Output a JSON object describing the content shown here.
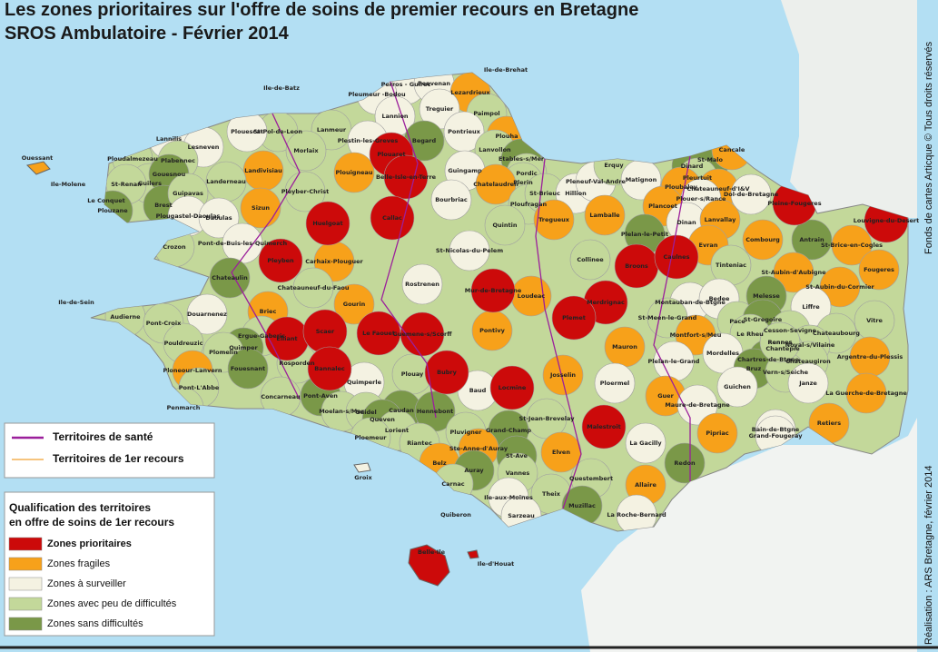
{
  "header": {
    "title": "Les zones prioritaires sur l'offre de soins de premier recours en Bretagne",
    "subtitle": "SROS Ambulatoire - Février 2014"
  },
  "legend": {
    "lines": [
      {
        "label": "Territoires de santé",
        "color": "#9b1f9b"
      },
      {
        "label": "Territoires de 1er recours",
        "color": "#f0a030"
      }
    ],
    "heading": [
      "Qualification des territoires",
      "en offre de soins de 1er recours"
    ],
    "zones": [
      {
        "label": "Zones prioritaires",
        "color": "#cc0a0a"
      },
      {
        "label": "Zones fragiles",
        "color": "#f7a11a"
      },
      {
        "label": "Zones à surveiller",
        "color": "#f4f2e2"
      },
      {
        "label": "Zones avec peu de difficultés",
        "color": "#c3d89a"
      },
      {
        "label": "Zones sans difficultés",
        "color": "#7a9848"
      }
    ]
  },
  "credits": [
    "Fonds de cartes Articque © Tous droits réservés",
    "Réalisation : ARS Bretagne, février 2014"
  ],
  "places": [
    "Ile-de-Brehat",
    "Ile-de-Batz",
    "Perros - Guirec",
    "Pleumeur -Bodou",
    "Penvenan",
    "Lezardrieux",
    "Treguier",
    "Paimpol",
    "Lannion",
    "St-Pol-de-Leon",
    "Plouescat",
    "Lanmeur",
    "Plestin-les-Greves",
    "Begard",
    "Pontrieux",
    "Plouha",
    "Lanvollon",
    "Etables-s/Mer",
    "Lannilis",
    "Lesneven",
    "Morlaix",
    "Plouaret",
    "Guingamp",
    "Ploudalmezeau",
    "Plabennec",
    "Ouessant",
    "Landivisiau",
    "Plouigneau",
    "Belle-Isle-en-Terre",
    "Pordic",
    "Plerin",
    "Ile-Molene",
    "Le Conquet",
    "Guilers",
    "Gouesnou",
    "St-Renan",
    "Landerneau",
    "Plouzane",
    "Brest",
    "Guipavas",
    "Sizun",
    "Pleyber-Christ",
    "Chatelaudren",
    "Bourbriac",
    "Ploufragan",
    "St-Brieuc",
    "Hillion",
    "Pleneuf-Val-Andre",
    "Erquy",
    "Matignon",
    "Dinard",
    "St-Malo",
    "Cancale",
    "Pleurtuit",
    "Chateauneuf-d'I&V",
    "Ploubalay",
    "Plouer-s/Rance",
    "Dol-de-Bretagne",
    "Pleine-Fougeres",
    "Plougastel-Daoulas",
    "Daoulas",
    "Huelgoat",
    "Callac",
    "Quintin",
    "Tregueux",
    "Lamballe",
    "Plancoet",
    "Dinan",
    "Lanvallay",
    "Louvigne-du-Desert",
    "Pont-de-Buis-les-Quimerch",
    "Crozon",
    "St-Nicolas-du-Pelem",
    "Plelan-le-Petit",
    "Evran",
    "Combourg",
    "Antrain",
    "St-Brice-en-Cogles",
    "Chateaulin",
    "Carhaix-Plouguer",
    "Pleyben",
    "Collinee",
    "Broons",
    "Caulnes",
    "Tinteniac",
    "Fougeres",
    "St-Aubin-d'Aubigne",
    "St-Aubin-du-Cormier",
    "Chateauneuf-du-Faou",
    "Rostrenen",
    "Mur-de-Bretagne",
    "Loudeac",
    "Ile-de-Sein",
    "Audierne",
    "Douarnenez",
    "Gourin",
    "Briec",
    "Merdrignac",
    "Montauban-de-Btgne",
    "Bedee",
    "Melesse",
    "Liffre",
    "Pont-Croix",
    "Ergue-Gaberic",
    "Elliant",
    "Scaer",
    "Le Faouet",
    "Guemene-s/Scorff",
    "Pontivy",
    "Plemet",
    "St-Meen-le-Grand",
    "Pace",
    "St-Gregoire",
    "Cesson-Sevigne",
    "Chateaubourg",
    "Vitre",
    "Pouldreuzic",
    "Quimper",
    "Plomelin",
    "Mauron",
    "Montfort-s/Meu",
    "Le Rheu",
    "Rennes",
    "Mordelles",
    "Noyal-s/Vilaine",
    "Chantepie",
    "Chartres-de-Btgne",
    "Chateaugiron",
    "Argentre-du-Plessis",
    "Rosporden",
    "Bannalec",
    "Fouesnant",
    "Ploneour-Lanvern",
    "Quimperle",
    "Plouay",
    "Baud",
    "Locmine",
    "Josselin",
    "Ploermel",
    "Plelan-le-Grand",
    "Bruz",
    "Vern-s/Seiche",
    "Guichen",
    "Janze",
    "La Guerche-de-Bretagne",
    "Pont-L'Abbe",
    "Concarneau",
    "Pont-Aven",
    "Penmarch",
    "Guer",
    "Maure-de-Bretagne",
    "Moelan-s/Mer",
    "Guidel",
    "Caudan",
    "Hennebont",
    "Queven",
    "Lorient",
    "St-Jean-Brevelay",
    "Pipriac",
    "Bain-de-Btgne",
    "Grand-Fougeray",
    "Retiers",
    "Ploemeur",
    "Riantec",
    "Pluvigner",
    "Grand-Champ",
    "Malestroit",
    "La Gacilly",
    "Ste-Anne-d'Auray",
    "St-Ave",
    "Elven",
    "Redon",
    "Belz",
    "Auray",
    "Vannes",
    "Questembert",
    "Groix",
    "Carnac",
    "Allaire",
    "Theix",
    "Ile-aux-Moines",
    "Muzillac",
    "Quiberon",
    "Sarzeau",
    "La Roche-Bernard",
    "Belle-Ile",
    "Ile-d'Houat",
    "Bubry",
    "Rennes"
  ]
}
